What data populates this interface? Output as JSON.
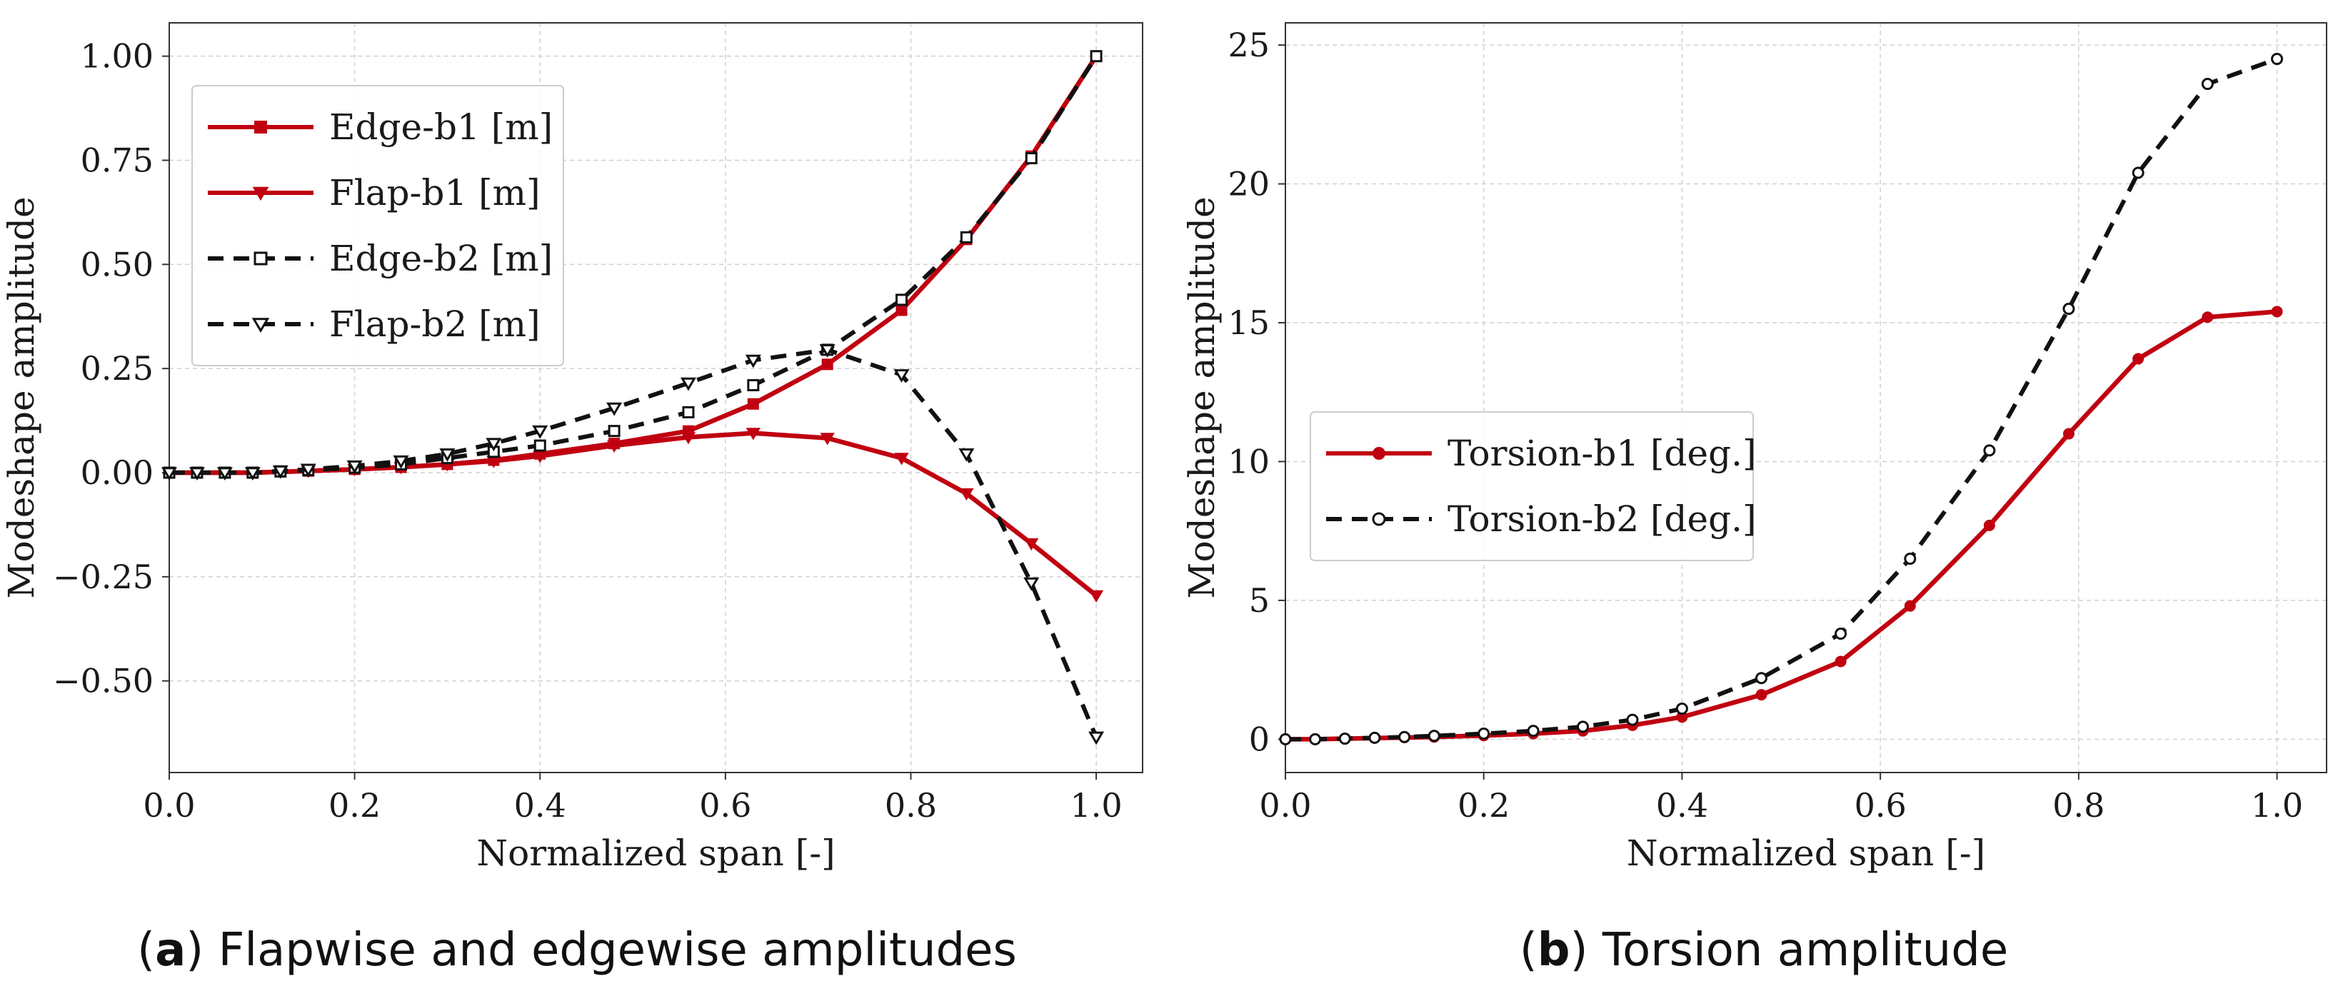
{
  "chart_data": [
    {
      "type": "line",
      "panel_label": "a",
      "caption": "Flapwise and edgewise amplitudes",
      "xlabel": "Normalized span [-]",
      "ylabel": "Modeshape amplitude",
      "xlim": [
        0.0,
        1.05
      ],
      "ylim": [
        -0.72,
        1.08
      ],
      "xticks": [
        "0.0",
        "0.2",
        "0.4",
        "0.6",
        "0.8",
        "1.0"
      ],
      "xtick_values": [
        0.0,
        0.2,
        0.4,
        0.6,
        0.8,
        1.0
      ],
      "yticks": [
        "−0.50",
        "−0.25",
        "0.00",
        "0.25",
        "0.50",
        "0.75",
        "1.00"
      ],
      "ytick_values": [
        -0.5,
        -0.25,
        0.0,
        0.25,
        0.5,
        0.75,
        1.0
      ],
      "grid": true,
      "legend_position": "upper-left",
      "series": [
        {
          "name": "Edge-b1 [m]",
          "color": "#c00010",
          "dash": "solid",
          "marker": "square",
          "marker_fill": "filled",
          "x": [
            0.0,
            0.03,
            0.06,
            0.09,
            0.12,
            0.15,
            0.2,
            0.25,
            0.3,
            0.35,
            0.4,
            0.48,
            0.56,
            0.63,
            0.71,
            0.79,
            0.86,
            0.93,
            1.0
          ],
          "y": [
            0.0,
            0.0,
            0.0,
            0.0,
            0.002,
            0.004,
            0.008,
            0.013,
            0.02,
            0.03,
            0.045,
            0.07,
            0.1,
            0.165,
            0.26,
            0.39,
            0.56,
            0.76,
            1.0
          ]
        },
        {
          "name": "Flap-b1 [m]",
          "color": "#c00010",
          "dash": "solid",
          "marker": "triangle-down",
          "marker_fill": "filled",
          "x": [
            0.0,
            0.03,
            0.06,
            0.09,
            0.12,
            0.15,
            0.2,
            0.25,
            0.3,
            0.35,
            0.4,
            0.48,
            0.56,
            0.63,
            0.71,
            0.79,
            0.86,
            0.93,
            1.0
          ],
          "y": [
            0.0,
            0.0,
            0.0,
            0.0,
            0.002,
            0.004,
            0.008,
            0.013,
            0.02,
            0.028,
            0.04,
            0.065,
            0.085,
            0.095,
            0.083,
            0.035,
            -0.05,
            -0.17,
            -0.295
          ]
        },
        {
          "name": "Edge-b2 [m]",
          "color": "#111111",
          "dash": "dashed",
          "marker": "square",
          "marker_fill": "open",
          "x": [
            0.0,
            0.03,
            0.06,
            0.09,
            0.12,
            0.15,
            0.2,
            0.25,
            0.3,
            0.35,
            0.4,
            0.48,
            0.56,
            0.63,
            0.71,
            0.79,
            0.86,
            0.93,
            1.0
          ],
          "y": [
            0.0,
            0.0,
            0.0,
            0.0,
            0.003,
            0.006,
            0.012,
            0.02,
            0.035,
            0.05,
            0.065,
            0.1,
            0.145,
            0.21,
            0.295,
            0.415,
            0.565,
            0.755,
            1.0
          ]
        },
        {
          "name": "Flap-b2 [m]",
          "color": "#111111",
          "dash": "dashed",
          "marker": "triangle-down",
          "marker_fill": "open",
          "x": [
            0.0,
            0.03,
            0.06,
            0.09,
            0.12,
            0.15,
            0.2,
            0.25,
            0.3,
            0.35,
            0.4,
            0.48,
            0.56,
            0.63,
            0.71,
            0.79,
            0.86,
            0.93,
            1.0
          ],
          "y": [
            0.0,
            0.0,
            0.0,
            0.0,
            0.004,
            0.008,
            0.016,
            0.028,
            0.045,
            0.07,
            0.1,
            0.155,
            0.215,
            0.27,
            0.295,
            0.235,
            0.045,
            -0.265,
            -0.635
          ]
        }
      ]
    },
    {
      "type": "line",
      "panel_label": "b",
      "caption": "Torsion amplitude",
      "xlabel": "Normalized span [-]",
      "ylabel": "Modeshape amplitude",
      "xlim": [
        0.0,
        1.05
      ],
      "ylim": [
        -1.2,
        25.8
      ],
      "xticks": [
        "0.0",
        "0.2",
        "0.4",
        "0.6",
        "0.8",
        "1.0"
      ],
      "xtick_values": [
        0.0,
        0.2,
        0.4,
        0.6,
        0.8,
        1.0
      ],
      "yticks": [
        "0",
        "5",
        "10",
        "15",
        "20",
        "25"
      ],
      "ytick_values": [
        0,
        5,
        10,
        15,
        20,
        25
      ],
      "grid": true,
      "legend_position": "center-left",
      "series": [
        {
          "name": "Torsion-b1 [deg.]",
          "color": "#c00010",
          "dash": "solid",
          "marker": "circle",
          "marker_fill": "filled",
          "x": [
            0.0,
            0.03,
            0.06,
            0.09,
            0.12,
            0.15,
            0.2,
            0.25,
            0.3,
            0.35,
            0.4,
            0.48,
            0.56,
            0.63,
            0.71,
            0.79,
            0.86,
            0.93,
            1.0
          ],
          "y": [
            0.0,
            0.0,
            0.02,
            0.04,
            0.06,
            0.08,
            0.13,
            0.2,
            0.3,
            0.5,
            0.8,
            1.6,
            2.8,
            4.8,
            7.7,
            11.0,
            13.7,
            15.2,
            15.4
          ]
        },
        {
          "name": "Torsion-b2 [deg.]",
          "color": "#111111",
          "dash": "dashed",
          "marker": "circle",
          "marker_fill": "open",
          "x": [
            0.0,
            0.03,
            0.06,
            0.09,
            0.12,
            0.15,
            0.2,
            0.25,
            0.3,
            0.35,
            0.4,
            0.48,
            0.56,
            0.63,
            0.71,
            0.79,
            0.86,
            0.93,
            1.0
          ],
          "y": [
            0.0,
            0.0,
            0.02,
            0.05,
            0.08,
            0.12,
            0.2,
            0.3,
            0.45,
            0.7,
            1.1,
            2.2,
            3.8,
            6.5,
            10.4,
            15.5,
            20.4,
            23.6,
            24.5
          ]
        }
      ]
    }
  ]
}
